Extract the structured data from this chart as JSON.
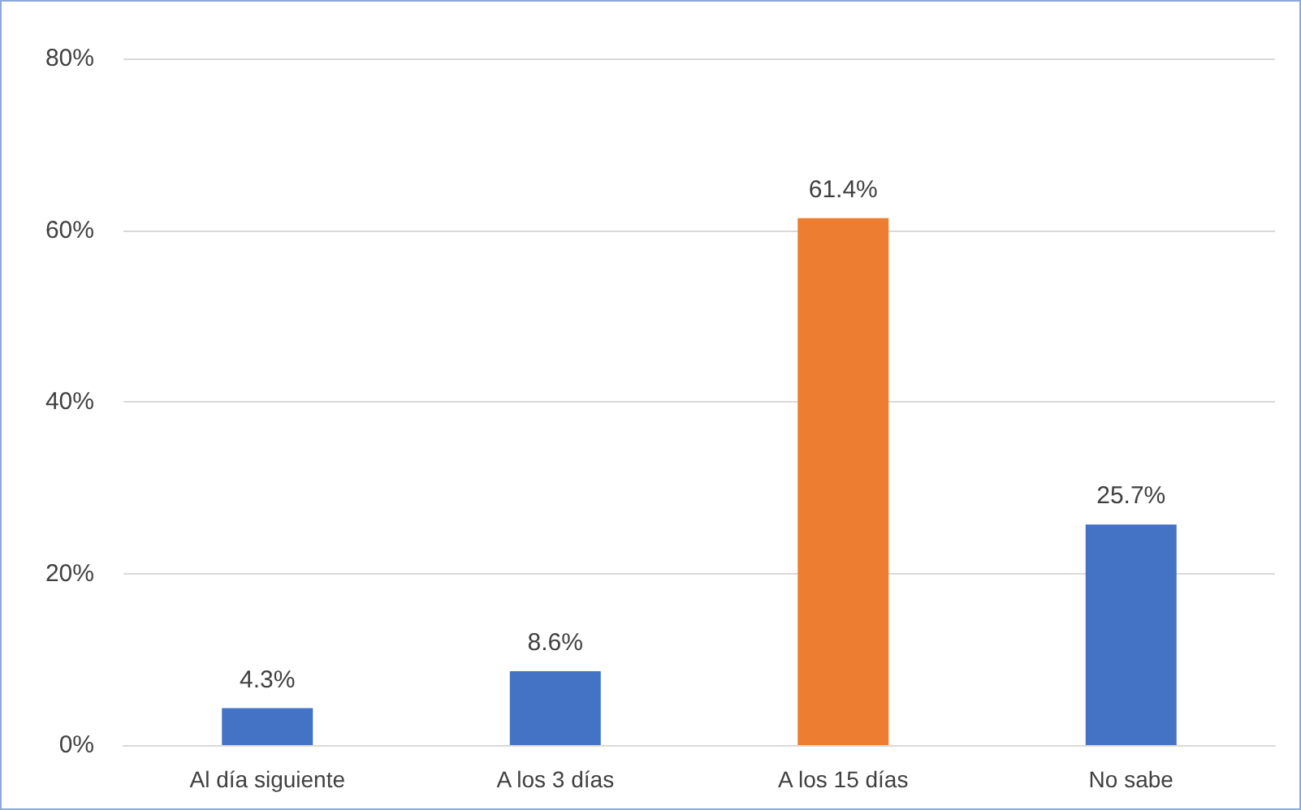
{
  "chart_data": {
    "type": "bar",
    "categories": [
      "Al día siguiente",
      "A los 3 días",
      "A los 15 días",
      "No sabe"
    ],
    "values": [
      4.3,
      8.6,
      61.4,
      25.7
    ],
    "colors": [
      "#4472c4",
      "#4472c4",
      "#ed7d31",
      "#4472c4"
    ],
    "value_labels": [
      "4.3%",
      "8.6%",
      "61.4%",
      "25.7%"
    ],
    "ylim": [
      0,
      80
    ],
    "yticks": [
      {
        "value": 0,
        "label": "0%"
      },
      {
        "value": 20,
        "label": "20%"
      },
      {
        "value": 40,
        "label": "40%"
      },
      {
        "value": 60,
        "label": "60%"
      },
      {
        "value": 80,
        "label": "80%"
      }
    ],
    "grid": "y"
  }
}
